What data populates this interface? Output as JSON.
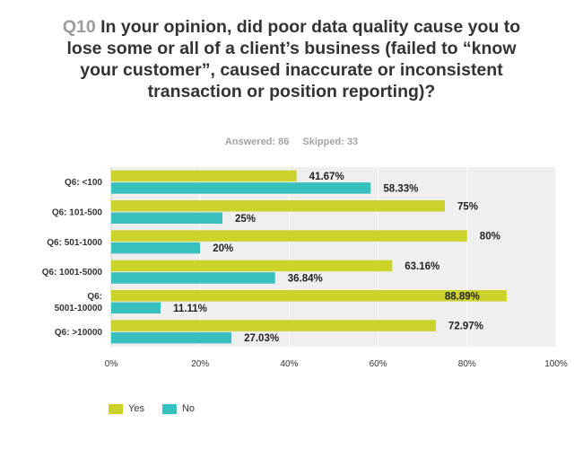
{
  "question": {
    "number": "Q10",
    "text": "In your opinion, did poor data quality cause you to lose some or all of a client’s business (failed to “know your customer”, caused inaccurate or inconsistent transaction or position reporting)?"
  },
  "stats": {
    "answered": "Answered: 86",
    "skipped": "Skipped: 33"
  },
  "colors": {
    "yes": "#cbd22a",
    "no": "#38c0bf",
    "plot_bg": "#efefef",
    "grid": "#ffffff"
  },
  "chart_data": {
    "type": "bar",
    "orientation": "horizontal",
    "categories": [
      [
        "Q6: <100"
      ],
      [
        "Q6: 101-500"
      ],
      [
        "Q6: 501-1000"
      ],
      [
        "Q6: 1001-5000"
      ],
      [
        "Q6:",
        "5001-10000"
      ],
      [
        "Q6: >10000"
      ]
    ],
    "series": [
      {
        "name": "Yes",
        "values": [
          41.67,
          75,
          80,
          63.16,
          88.89,
          72.97
        ],
        "labels": [
          "41.67%",
          "75%",
          "80%",
          "63.16%",
          "88.89%",
          "72.97%"
        ]
      },
      {
        "name": "No",
        "values": [
          58.33,
          25,
          20,
          36.84,
          11.11,
          27.03
        ],
        "labels": [
          "58.33%",
          "25%",
          "20%",
          "36.84%",
          "11.11%",
          "27.03%"
        ]
      }
    ],
    "xlim": [
      0,
      100
    ],
    "x_ticks": [
      "0%",
      "20%",
      "40%",
      "60%",
      "80%",
      "100%"
    ],
    "grid": true,
    "legend_position": "bottom-left"
  }
}
